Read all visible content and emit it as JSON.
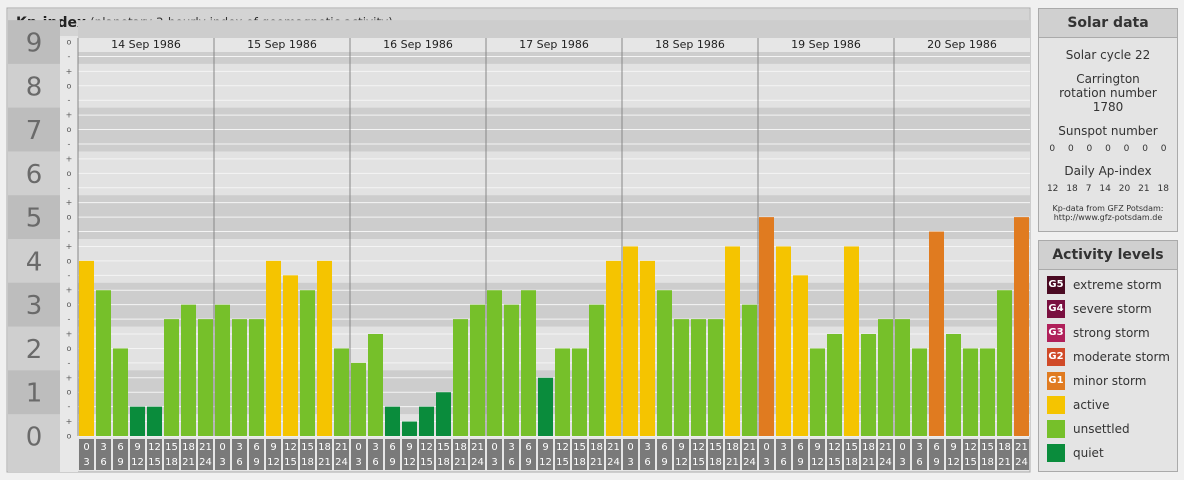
{
  "chart_data": {
    "type": "bar",
    "title": "Kp-index",
    "subtitle": "(planetary 3-hourly index of geomagnetic activity)",
    "ylim": [
      0,
      9
    ],
    "yticks": [
      0,
      1,
      2,
      3,
      4,
      5,
      6,
      7,
      8,
      9
    ],
    "minor_ticks": [
      {
        "value": 0,
        "label": "o"
      },
      {
        "value": 0.33,
        "label": "+"
      },
      {
        "value": 0.67,
        "label": "-"
      },
      {
        "value": 1,
        "label": "o"
      },
      {
        "value": 1.33,
        "label": "+"
      },
      {
        "value": 1.67,
        "label": "-"
      },
      {
        "value": 2,
        "label": "o"
      },
      {
        "value": 2.33,
        "label": "+"
      },
      {
        "value": 2.67,
        "label": "-"
      },
      {
        "value": 3,
        "label": "o"
      },
      {
        "value": 3.33,
        "label": "+"
      },
      {
        "value": 3.67,
        "label": "-"
      },
      {
        "value": 4,
        "label": "o"
      },
      {
        "value": 4.33,
        "label": "+"
      },
      {
        "value": 4.67,
        "label": "-"
      },
      {
        "value": 5,
        "label": "o"
      },
      {
        "value": 5.33,
        "label": "+"
      },
      {
        "value": 5.67,
        "label": "-"
      },
      {
        "value": 6,
        "label": "o"
      },
      {
        "value": 6.33,
        "label": "+"
      },
      {
        "value": 6.67,
        "label": "-"
      },
      {
        "value": 7,
        "label": "o"
      },
      {
        "value": 7.33,
        "label": "+"
      },
      {
        "value": 7.67,
        "label": "-"
      },
      {
        "value": 8,
        "label": "o"
      },
      {
        "value": 8.33,
        "label": "+"
      },
      {
        "value": 8.67,
        "label": "-"
      },
      {
        "value": 9,
        "label": "o"
      }
    ],
    "grid": true,
    "hours": [
      {
        "start": "0",
        "end": "3"
      },
      {
        "start": "3",
        "end": "6"
      },
      {
        "start": "6",
        "end": "9"
      },
      {
        "start": "9",
        "end": "12"
      },
      {
        "start": "12",
        "end": "15"
      },
      {
        "start": "15",
        "end": "18"
      },
      {
        "start": "18",
        "end": "21"
      },
      {
        "start": "21",
        "end": "24"
      }
    ],
    "days": [
      {
        "date": "14 Sep 1986",
        "values": [
          4.0,
          3.33,
          2.0,
          0.67,
          0.67,
          2.67,
          3.0,
          2.67
        ],
        "colors": [
          "#f5c400",
          "#76c02a",
          "#76c02a",
          "#0a8c3c",
          "#0a8c3c",
          "#76c02a",
          "#76c02a",
          "#76c02a"
        ]
      },
      {
        "date": "15 Sep 1986",
        "values": [
          3.0,
          2.67,
          2.67,
          4.0,
          3.67,
          3.33,
          4.0,
          2.0
        ],
        "colors": [
          "#76c02a",
          "#76c02a",
          "#76c02a",
          "#f5c400",
          "#f5c400",
          "#76c02a",
          "#f5c400",
          "#76c02a"
        ]
      },
      {
        "date": "16 Sep 1986",
        "values": [
          1.67,
          2.33,
          0.67,
          0.33,
          0.67,
          1.0,
          2.67,
          3.0
        ],
        "colors": [
          "#76c02a",
          "#76c02a",
          "#0a8c3c",
          "#0a8c3c",
          "#0a8c3c",
          "#0a8c3c",
          "#76c02a",
          "#76c02a"
        ]
      },
      {
        "date": "17 Sep 1986",
        "values": [
          3.33,
          3.0,
          3.33,
          1.33,
          2.0,
          2.0,
          3.0,
          4.0
        ],
        "colors": [
          "#76c02a",
          "#76c02a",
          "#76c02a",
          "#0a8c3c",
          "#76c02a",
          "#76c02a",
          "#76c02a",
          "#f5c400"
        ]
      },
      {
        "date": "18 Sep 1986",
        "values": [
          4.33,
          4.0,
          3.33,
          2.67,
          2.67,
          2.67,
          4.33,
          3.0
        ],
        "colors": [
          "#f5c400",
          "#f5c400",
          "#76c02a",
          "#76c02a",
          "#76c02a",
          "#76c02a",
          "#f5c400",
          "#76c02a"
        ]
      },
      {
        "date": "19 Sep 1986",
        "values": [
          5.0,
          4.33,
          3.67,
          2.0,
          2.33,
          4.33,
          2.33,
          2.67
        ],
        "colors": [
          "#e07b20",
          "#f5c400",
          "#f5c400",
          "#76c02a",
          "#76c02a",
          "#f5c400",
          "#76c02a",
          "#76c02a"
        ]
      },
      {
        "date": "20 Sep 1986",
        "values": [
          2.67,
          2.0,
          4.67,
          2.33,
          2.0,
          2.0,
          3.33,
          5.0
        ],
        "colors": [
          "#76c02a",
          "#76c02a",
          "#e07b20",
          "#76c02a",
          "#76c02a",
          "#76c02a",
          "#76c02a",
          "#e07b20"
        ]
      }
    ]
  },
  "solar_data": {
    "title": "Solar data",
    "cycle": "Solar cycle 22",
    "carrington": "Carrington rotation number 1780",
    "sunspot_label": "Sunspot number",
    "sunspot_numbers": [
      0,
      0,
      0,
      0,
      0,
      0,
      0
    ],
    "ap_label": "Daily Ap-index",
    "ap_values": [
      12,
      18,
      7,
      14,
      20,
      21,
      18
    ],
    "source": "Kp-data from GFZ Potsdam:",
    "url": "http://www.gfz-potsdam.de"
  },
  "activity_levels": {
    "title": "Activity levels",
    "levels": [
      {
        "code": "G5",
        "label": "extreme storm",
        "color": "#4a0a22"
      },
      {
        "code": "G4",
        "label": "severe storm",
        "color": "#7a1040"
      },
      {
        "code": "G3",
        "label": "strong storm",
        "color": "#b0205a"
      },
      {
        "code": "G2",
        "label": "moderate storm",
        "color": "#d04a28"
      },
      {
        "code": "G1",
        "label": "minor storm",
        "color": "#e07b20"
      },
      {
        "code": "",
        "label": "active",
        "color": "#f5c400"
      },
      {
        "code": "",
        "label": "unsettled",
        "color": "#76c02a"
      },
      {
        "code": "",
        "label": "quiet",
        "color": "#0a8c3c"
      }
    ]
  }
}
